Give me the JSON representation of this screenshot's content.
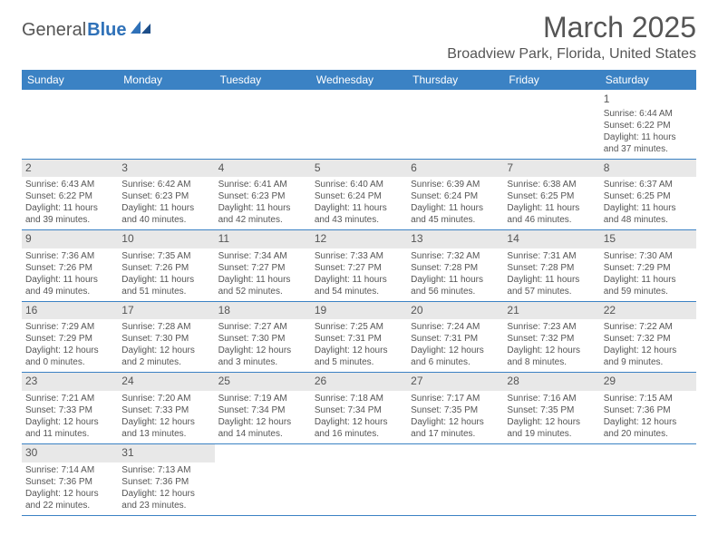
{
  "logo": {
    "textA": "General",
    "textB": "Blue"
  },
  "title": "March 2025",
  "location": "Broadview Park, Florida, United States",
  "colors": {
    "headerBar": "#3b82c4",
    "headerText": "#ffffff",
    "bodyText": "#555555",
    "dayNumBg": "#e8e8e8",
    "rowBorder": "#3b82c4",
    "logoBlue": "#2f71b8"
  },
  "weekdays": [
    "Sunday",
    "Monday",
    "Tuesday",
    "Wednesday",
    "Thursday",
    "Friday",
    "Saturday"
  ],
  "weeks": [
    [
      null,
      null,
      null,
      null,
      null,
      null,
      {
        "n": "1",
        "sr": "Sunrise: 6:44 AM",
        "ss": "Sunset: 6:22 PM",
        "dl": "Daylight: 11 hours and 37 minutes."
      }
    ],
    [
      {
        "n": "2",
        "sr": "Sunrise: 6:43 AM",
        "ss": "Sunset: 6:22 PM",
        "dl": "Daylight: 11 hours and 39 minutes."
      },
      {
        "n": "3",
        "sr": "Sunrise: 6:42 AM",
        "ss": "Sunset: 6:23 PM",
        "dl": "Daylight: 11 hours and 40 minutes."
      },
      {
        "n": "4",
        "sr": "Sunrise: 6:41 AM",
        "ss": "Sunset: 6:23 PM",
        "dl": "Daylight: 11 hours and 42 minutes."
      },
      {
        "n": "5",
        "sr": "Sunrise: 6:40 AM",
        "ss": "Sunset: 6:24 PM",
        "dl": "Daylight: 11 hours and 43 minutes."
      },
      {
        "n": "6",
        "sr": "Sunrise: 6:39 AM",
        "ss": "Sunset: 6:24 PM",
        "dl": "Daylight: 11 hours and 45 minutes."
      },
      {
        "n": "7",
        "sr": "Sunrise: 6:38 AM",
        "ss": "Sunset: 6:25 PM",
        "dl": "Daylight: 11 hours and 46 minutes."
      },
      {
        "n": "8",
        "sr": "Sunrise: 6:37 AM",
        "ss": "Sunset: 6:25 PM",
        "dl": "Daylight: 11 hours and 48 minutes."
      }
    ],
    [
      {
        "n": "9",
        "sr": "Sunrise: 7:36 AM",
        "ss": "Sunset: 7:26 PM",
        "dl": "Daylight: 11 hours and 49 minutes."
      },
      {
        "n": "10",
        "sr": "Sunrise: 7:35 AM",
        "ss": "Sunset: 7:26 PM",
        "dl": "Daylight: 11 hours and 51 minutes."
      },
      {
        "n": "11",
        "sr": "Sunrise: 7:34 AM",
        "ss": "Sunset: 7:27 PM",
        "dl": "Daylight: 11 hours and 52 minutes."
      },
      {
        "n": "12",
        "sr": "Sunrise: 7:33 AM",
        "ss": "Sunset: 7:27 PM",
        "dl": "Daylight: 11 hours and 54 minutes."
      },
      {
        "n": "13",
        "sr": "Sunrise: 7:32 AM",
        "ss": "Sunset: 7:28 PM",
        "dl": "Daylight: 11 hours and 56 minutes."
      },
      {
        "n": "14",
        "sr": "Sunrise: 7:31 AM",
        "ss": "Sunset: 7:28 PM",
        "dl": "Daylight: 11 hours and 57 minutes."
      },
      {
        "n": "15",
        "sr": "Sunrise: 7:30 AM",
        "ss": "Sunset: 7:29 PM",
        "dl": "Daylight: 11 hours and 59 minutes."
      }
    ],
    [
      {
        "n": "16",
        "sr": "Sunrise: 7:29 AM",
        "ss": "Sunset: 7:29 PM",
        "dl": "Daylight: 12 hours and 0 minutes."
      },
      {
        "n": "17",
        "sr": "Sunrise: 7:28 AM",
        "ss": "Sunset: 7:30 PM",
        "dl": "Daylight: 12 hours and 2 minutes."
      },
      {
        "n": "18",
        "sr": "Sunrise: 7:27 AM",
        "ss": "Sunset: 7:30 PM",
        "dl": "Daylight: 12 hours and 3 minutes."
      },
      {
        "n": "19",
        "sr": "Sunrise: 7:25 AM",
        "ss": "Sunset: 7:31 PM",
        "dl": "Daylight: 12 hours and 5 minutes."
      },
      {
        "n": "20",
        "sr": "Sunrise: 7:24 AM",
        "ss": "Sunset: 7:31 PM",
        "dl": "Daylight: 12 hours and 6 minutes."
      },
      {
        "n": "21",
        "sr": "Sunrise: 7:23 AM",
        "ss": "Sunset: 7:32 PM",
        "dl": "Daylight: 12 hours and 8 minutes."
      },
      {
        "n": "22",
        "sr": "Sunrise: 7:22 AM",
        "ss": "Sunset: 7:32 PM",
        "dl": "Daylight: 12 hours and 9 minutes."
      }
    ],
    [
      {
        "n": "23",
        "sr": "Sunrise: 7:21 AM",
        "ss": "Sunset: 7:33 PM",
        "dl": "Daylight: 12 hours and 11 minutes."
      },
      {
        "n": "24",
        "sr": "Sunrise: 7:20 AM",
        "ss": "Sunset: 7:33 PM",
        "dl": "Daylight: 12 hours and 13 minutes."
      },
      {
        "n": "25",
        "sr": "Sunrise: 7:19 AM",
        "ss": "Sunset: 7:34 PM",
        "dl": "Daylight: 12 hours and 14 minutes."
      },
      {
        "n": "26",
        "sr": "Sunrise: 7:18 AM",
        "ss": "Sunset: 7:34 PM",
        "dl": "Daylight: 12 hours and 16 minutes."
      },
      {
        "n": "27",
        "sr": "Sunrise: 7:17 AM",
        "ss": "Sunset: 7:35 PM",
        "dl": "Daylight: 12 hours and 17 minutes."
      },
      {
        "n": "28",
        "sr": "Sunrise: 7:16 AM",
        "ss": "Sunset: 7:35 PM",
        "dl": "Daylight: 12 hours and 19 minutes."
      },
      {
        "n": "29",
        "sr": "Sunrise: 7:15 AM",
        "ss": "Sunset: 7:36 PM",
        "dl": "Daylight: 12 hours and 20 minutes."
      }
    ],
    [
      {
        "n": "30",
        "sr": "Sunrise: 7:14 AM",
        "ss": "Sunset: 7:36 PM",
        "dl": "Daylight: 12 hours and 22 minutes."
      },
      {
        "n": "31",
        "sr": "Sunrise: 7:13 AM",
        "ss": "Sunset: 7:36 PM",
        "dl": "Daylight: 12 hours and 23 minutes."
      },
      null,
      null,
      null,
      null,
      null
    ]
  ]
}
